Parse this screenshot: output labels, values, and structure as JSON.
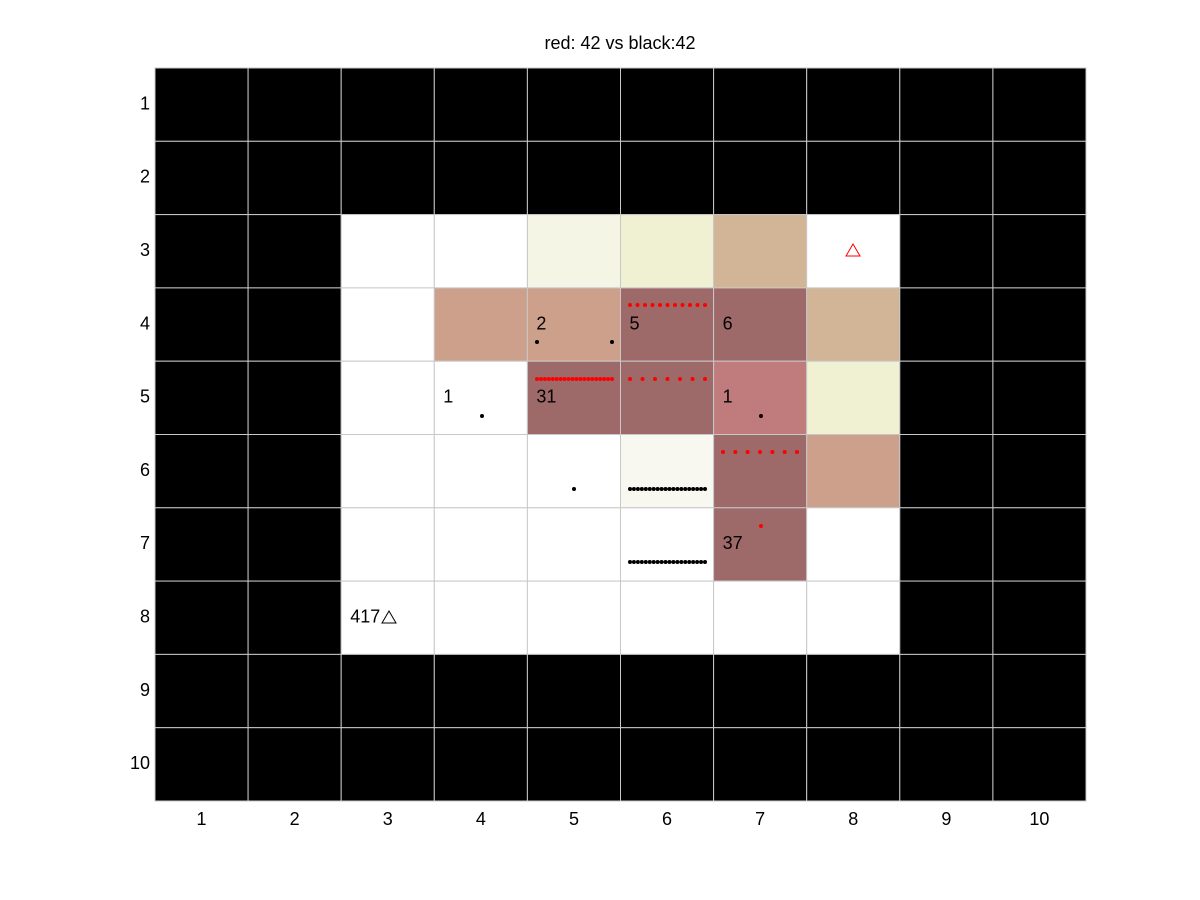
{
  "title": "red: 42 vs black:42",
  "x_labels": [
    1,
    2,
    3,
    4,
    5,
    6,
    7,
    8,
    9,
    10
  ],
  "y_labels": [
    1,
    2,
    3,
    4,
    5,
    6,
    7,
    8,
    9,
    10
  ],
  "cells": [
    [
      "#000000",
      "#000000",
      "#000000",
      "#000000",
      "#000000",
      "#000000",
      "#000000",
      "#000000",
      "#000000",
      "#000000"
    ],
    [
      "#000000",
      "#000000",
      "#000000",
      "#000000",
      "#000000",
      "#000000",
      "#000000",
      "#000000",
      "#000000",
      "#000000"
    ],
    [
      "#000000",
      "#000000",
      "#ffffff",
      "#ffffff",
      "#f5f5e6",
      "#f0f0d2",
      "#d2b496",
      "#ffffff",
      "#000000",
      "#000000"
    ],
    [
      "#000000",
      "#000000",
      "#ffffff",
      "#cda08c",
      "#cda08c",
      "#9e6969",
      "#9e6969",
      "#d2b496",
      "#000000",
      "#000000"
    ],
    [
      "#000000",
      "#000000",
      "#ffffff",
      "#ffffff",
      "#9e6969",
      "#9e6969",
      "#c07c7c",
      "#f0f0d2",
      "#000000",
      "#000000"
    ],
    [
      "#000000",
      "#000000",
      "#ffffff",
      "#ffffff",
      "#ffffff",
      "#f8f8f0",
      "#9e6969",
      "#cda08c",
      "#000000",
      "#000000"
    ],
    [
      "#000000",
      "#000000",
      "#ffffff",
      "#ffffff",
      "#ffffff",
      "#ffffff",
      "#9e6969",
      "#ffffff",
      "#000000",
      "#000000"
    ],
    [
      "#000000",
      "#000000",
      "#ffffff",
      "#ffffff",
      "#ffffff",
      "#ffffff",
      "#ffffff",
      "#ffffff",
      "#000000",
      "#000000"
    ],
    [
      "#000000",
      "#000000",
      "#000000",
      "#000000",
      "#000000",
      "#000000",
      "#000000",
      "#000000",
      "#000000",
      "#000000"
    ],
    [
      "#000000",
      "#000000",
      "#000000",
      "#000000",
      "#000000",
      "#000000",
      "#000000",
      "#000000",
      "#000000",
      "#000000"
    ]
  ],
  "cell_labels": [
    {
      "row": 4,
      "col": 5,
      "text": "2"
    },
    {
      "row": 4,
      "col": 6,
      "text": "5"
    },
    {
      "row": 4,
      "col": 7,
      "text": "6"
    },
    {
      "row": 5,
      "col": 4,
      "text": "1"
    },
    {
      "row": 5,
      "col": 5,
      "text": "31"
    },
    {
      "row": 5,
      "col": 7,
      "text": "1"
    },
    {
      "row": 7,
      "col": 7,
      "text": "37"
    },
    {
      "row": 8,
      "col": 3,
      "text": "417"
    }
  ]
}
